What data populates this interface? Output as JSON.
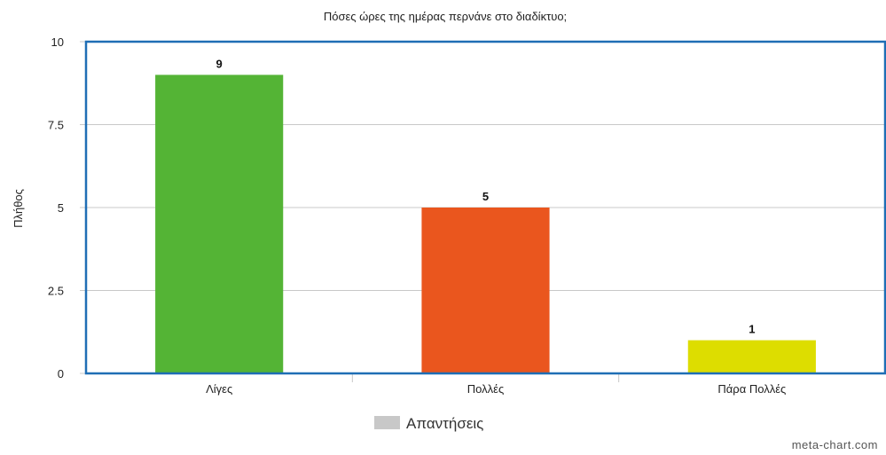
{
  "chart_data": {
    "type": "bar",
    "title": "Πόσες ώρες της ημέρας περνάνε στο διαδίκτυο;",
    "xlabel": "",
    "ylabel": "Πλήθος",
    "categories": [
      "Λίγες",
      "Πολλές",
      "Πάρα Πολλές"
    ],
    "series": [
      {
        "name": "Απαντήσεις",
        "values": [
          9,
          5,
          1
        ],
        "colors": [
          "#54b435",
          "#ea561e",
          "#dddd00"
        ]
      }
    ],
    "ylim": [
      0,
      10
    ],
    "yticks": [
      "0",
      "2.5",
      "5",
      "7.5",
      "10"
    ],
    "yticks_values": [
      0,
      2.5,
      5,
      7.5,
      10
    ],
    "data_labels": [
      "9",
      "5",
      "1"
    ],
    "grid": true,
    "legend_position": "bottom-center",
    "legend_color": "#c8c8c8",
    "frame_color": "#1f6eb5"
  },
  "watermark": "meta-chart.com"
}
